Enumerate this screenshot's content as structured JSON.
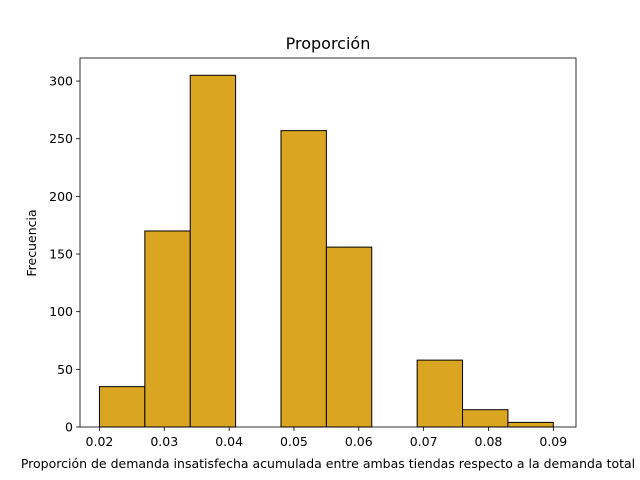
{
  "chart_data": {
    "type": "bar",
    "title": "Proporción",
    "xlabel": "Proporción de demanda insatisfecha acumulada entre ambas tiendas respecto a la demanda total",
    "ylabel": "Frecuencia",
    "bar_color": "#DAA520",
    "edge_color": "#000000",
    "xlim": [
      0.017,
      0.0935
    ],
    "ylim": [
      0,
      320
    ],
    "xticks": [
      {
        "value": 0.02,
        "label": "0.02"
      },
      {
        "value": 0.03,
        "label": "0.03"
      },
      {
        "value": 0.04,
        "label": "0.04"
      },
      {
        "value": 0.05,
        "label": "0.05"
      },
      {
        "value": 0.06,
        "label": "0.06"
      },
      {
        "value": 0.07,
        "label": "0.07"
      },
      {
        "value": 0.08,
        "label": "0.08"
      },
      {
        "value": 0.09,
        "label": "0.09"
      }
    ],
    "yticks": [
      {
        "value": 0,
        "label": "0"
      },
      {
        "value": 50,
        "label": "50"
      },
      {
        "value": 100,
        "label": "100"
      },
      {
        "value": 150,
        "label": "150"
      },
      {
        "value": 200,
        "label": "200"
      },
      {
        "value": 250,
        "label": "250"
      },
      {
        "value": 300,
        "label": "300"
      }
    ],
    "bins": [
      {
        "start": 0.02,
        "end": 0.027,
        "count": 35
      },
      {
        "start": 0.027,
        "end": 0.034,
        "count": 170
      },
      {
        "start": 0.034,
        "end": 0.041,
        "count": 305
      },
      {
        "start": 0.041,
        "end": 0.048,
        "count": 0
      },
      {
        "start": 0.048,
        "end": 0.055,
        "count": 257
      },
      {
        "start": 0.055,
        "end": 0.062,
        "count": 156
      },
      {
        "start": 0.062,
        "end": 0.069,
        "count": 0
      },
      {
        "start": 0.069,
        "end": 0.076,
        "count": 58
      },
      {
        "start": 0.076,
        "end": 0.083,
        "count": 15
      },
      {
        "start": 0.083,
        "end": 0.09,
        "count": 4
      }
    ]
  }
}
